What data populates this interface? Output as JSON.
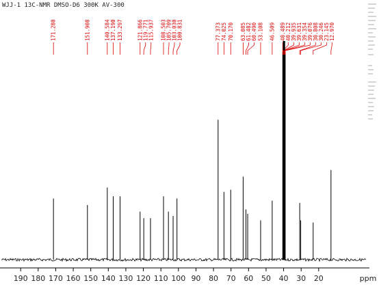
{
  "chart_data": {
    "type": "nmr",
    "title": "WJJ-1 13C-NMR DMSO-D6 300K AV-300",
    "x_label": "ppm",
    "xlim": [
      201,
      -7
    ],
    "ylim": [
      0,
      100
    ],
    "xticks": [
      190,
      180,
      170,
      160,
      150,
      140,
      130,
      120,
      110,
      100,
      90,
      80,
      70,
      60,
      50,
      40,
      30,
      20
    ],
    "color": "#000000",
    "label_color": "#dd0000",
    "x": [
      {
        "value": 171.28,
        "label": "171.280"
      },
      {
        "value": 151.908,
        "label": "151.908"
      },
      {
        "value": 140.584,
        "label": "140.584"
      },
      {
        "value": 137.19,
        "label": "137.190"
      },
      {
        "value": 133.297,
        "label": "133.297"
      },
      {
        "value": 121.866,
        "label": "121.866"
      },
      {
        "value": 119.771,
        "label": "119.771"
      },
      {
        "value": 115.937,
        "label": "115.937"
      },
      {
        "value": 108.503,
        "label": "108.503"
      },
      {
        "value": 105.709,
        "label": "105.709"
      },
      {
        "value": 103.03,
        "label": "103.030"
      },
      {
        "value": 100.831,
        "label": "100.831"
      },
      {
        "value": 77.373,
        "label": "77.373"
      },
      {
        "value": 74.025,
        "label": "74.025"
      },
      {
        "value": 70.17,
        "label": "70.170"
      },
      {
        "value": 63.085,
        "label": "63.085"
      },
      {
        "value": 61.482,
        "label": "61.482"
      },
      {
        "value": 60.49,
        "label": "60.490"
      },
      {
        "value": 53.108,
        "label": "53.108"
      },
      {
        "value": 46.509,
        "label": "46.509"
      },
      {
        "value": 40.489,
        "label": "40.489"
      },
      {
        "value": 40.212,
        "label": "40.212"
      },
      {
        "value": 39.935,
        "label": "39.935"
      },
      {
        "value": 39.631,
        "label": "39.631"
      },
      {
        "value": 39.354,
        "label": "39.354"
      },
      {
        "value": 39.076,
        "label": "39.076"
      },
      {
        "value": 30.808,
        "label": "30.808"
      },
      {
        "value": 30.246,
        "label": "30.246"
      },
      {
        "value": 23.145,
        "label": "23.145"
      },
      {
        "value": 12.97,
        "label": "12.970"
      }
    ],
    "values": [
      28,
      25,
      33,
      29,
      29,
      22,
      19,
      19,
      29,
      22,
      20,
      28,
      64,
      31,
      32,
      38,
      23,
      21,
      18,
      27,
      95,
      100,
      100,
      100,
      100,
      95,
      26,
      18,
      17,
      41
    ]
  }
}
